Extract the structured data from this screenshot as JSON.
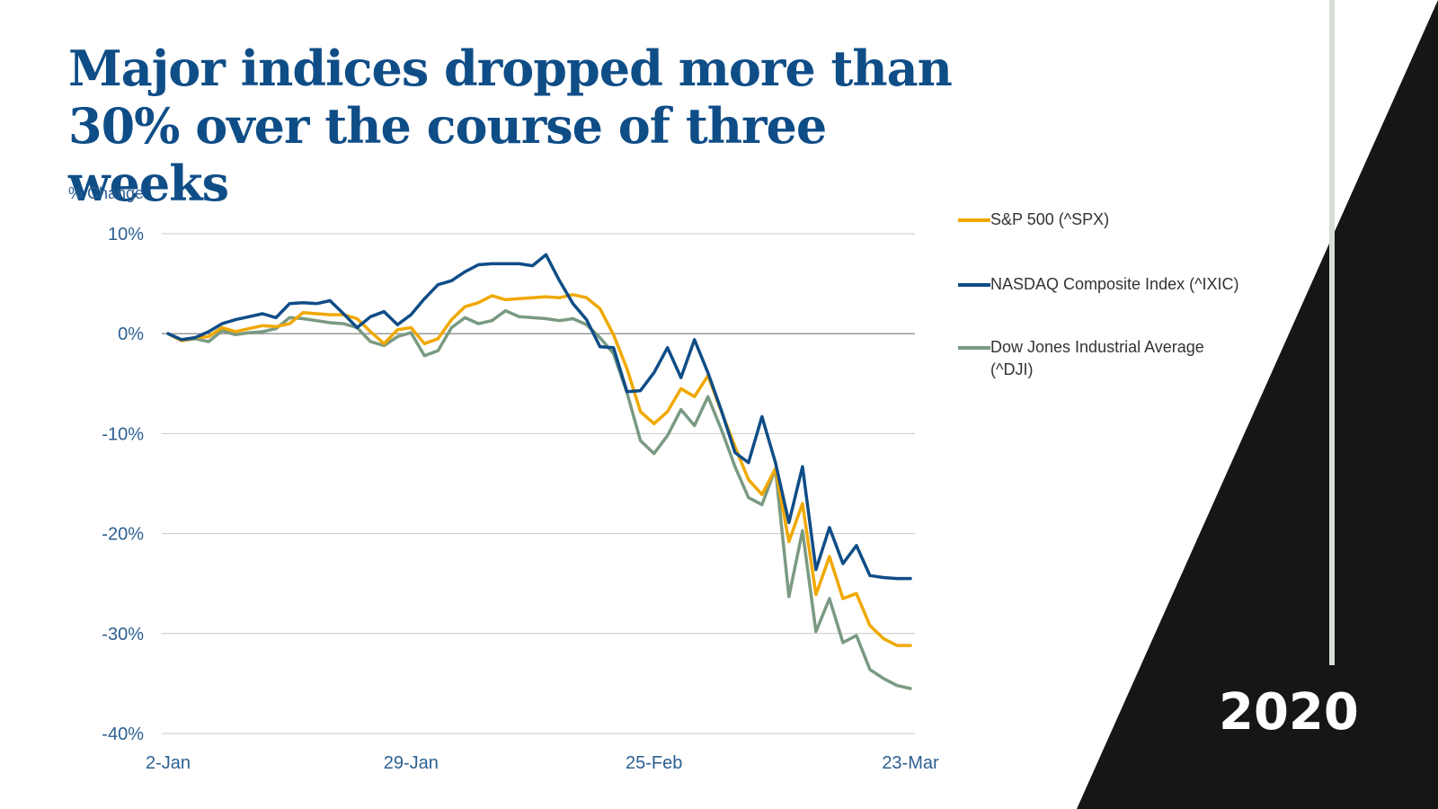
{
  "title_line1": "Major indices dropped more than",
  "title_line2": "30% over the course of three weeks",
  "year_label": "2020",
  "colors": {
    "title": "#0f4d87",
    "axis_text": "#2c5f91",
    "grid": "#c8c8c8",
    "zero_line": "#9a9a9a",
    "decor_dark": "#161616",
    "decor_bar": "#d8ddd8"
  },
  "chart_data": {
    "type": "line",
    "title": "Major indices dropped more than 30% over the course of three weeks",
    "xlabel": "",
    "ylabel": "% Change",
    "ylim": [
      -40,
      10
    ],
    "yticks": [
      10,
      0,
      -10,
      -20,
      -30,
      -40
    ],
    "ytick_labels": [
      "10%",
      "0%",
      "-10%",
      "-20%",
      "-30%",
      "-40%"
    ],
    "xticks": [
      "2-Jan",
      "29-Jan",
      "25-Feb",
      "23-Mar"
    ],
    "grid": true,
    "legend_position": "right",
    "x": [
      "2-Jan",
      "3-Jan",
      "6-Jan",
      "7-Jan",
      "8-Jan",
      "9-Jan",
      "10-Jan",
      "13-Jan",
      "14-Jan",
      "15-Jan",
      "16-Jan",
      "17-Jan",
      "21-Jan",
      "22-Jan",
      "23-Jan",
      "24-Jan",
      "27-Jan",
      "28-Jan",
      "29-Jan",
      "30-Jan",
      "31-Jan",
      "3-Feb",
      "4-Feb",
      "5-Feb",
      "6-Feb",
      "7-Feb",
      "10-Feb",
      "11-Feb",
      "12-Feb",
      "13-Feb",
      "14-Feb",
      "18-Feb",
      "19-Feb",
      "20-Feb",
      "21-Feb",
      "24-Feb",
      "25-Feb",
      "26-Feb",
      "27-Feb",
      "28-Feb",
      "2-Mar",
      "3-Mar",
      "4-Mar",
      "5-Mar",
      "6-Mar",
      "9-Mar",
      "10-Mar",
      "11-Mar",
      "12-Mar",
      "13-Mar",
      "16-Mar",
      "17-Mar",
      "18-Mar",
      "19-Mar",
      "20-Mar",
      "23-Mar"
    ],
    "series": [
      {
        "name": "S&P 500 (^SPX)",
        "color": "#f0a800",
        "values": [
          0,
          -0.7,
          -0.4,
          -0.3,
          0.6,
          0.2,
          0.5,
          0.8,
          0.7,
          1.0,
          2.1,
          2.0,
          1.9,
          1.9,
          1.5,
          0.2,
          -1.0,
          0.4,
          0.6,
          -1.0,
          -0.5,
          1.4,
          2.7,
          3.1,
          3.8,
          3.4,
          3.5,
          3.6,
          3.7,
          3.6,
          3.9,
          3.6,
          2.5,
          -0.1,
          -3.5,
          -7.8,
          -9.0,
          -7.8,
          -5.5,
          -6.3,
          -4.2,
          -7.8,
          -11.3,
          -14.6,
          -16.1,
          -13.5,
          -20.8,
          -17.0,
          -26.1,
          -22.3,
          -26.5,
          -26.0,
          -29.2,
          -30.5,
          -31.2,
          -31.2
        ]
      },
      {
        "name": "NASDAQ Composite Index (^IXIC)",
        "color": "#0f4d87",
        "values": [
          0,
          -0.6,
          -0.4,
          0.2,
          1.0,
          1.4,
          1.7,
          2.0,
          1.6,
          3.0,
          3.1,
          3.0,
          3.3,
          2.0,
          0.6,
          1.7,
          2.2,
          0.9,
          1.9,
          3.5,
          4.9,
          5.3,
          6.2,
          6.9,
          7.0,
          7.0,
          7.0,
          6.8,
          7.9,
          5.3,
          3.0,
          1.4,
          -1.3,
          -1.4,
          -5.8,
          -5.7,
          -3.9,
          -1.4,
          -4.4,
          -0.6,
          -3.9,
          -7.7,
          -11.9,
          -12.9,
          -8.3,
          -12.9,
          -18.9,
          -13.3,
          -23.6,
          -19.4,
          -23.0,
          -21.2,
          -24.2,
          -24.4,
          -24.5,
          -24.5
        ]
      },
      {
        "name": "Dow Jones Industrial Average (^DJI)",
        "color": "#7a9a82",
        "values": [
          0,
          -0.7,
          -0.5,
          -0.8,
          0.3,
          -0.1,
          0.1,
          0.2,
          0.5,
          1.6,
          1.5,
          1.3,
          1.1,
          1.0,
          0.6,
          -0.8,
          -1.2,
          -0.3,
          0.1,
          -2.2,
          -1.7,
          0.6,
          1.6,
          1.0,
          1.3,
          2.3,
          1.7,
          1.6,
          1.5,
          1.3,
          1.5,
          0.9,
          -0.4,
          -2.0,
          -5.9,
          -10.7,
          -12.0,
          -10.2,
          -7.6,
          -9.2,
          -6.3,
          -9.6,
          -13.3,
          -16.4,
          -17.1,
          -13.5,
          -26.3,
          -19.7,
          -29.8,
          -26.5,
          -30.9,
          -30.2,
          -33.6,
          -34.5,
          -35.2,
          -35.5
        ]
      }
    ]
  },
  "legend": [
    {
      "label": "S&P 500 (^SPX)",
      "color": "#f0a800"
    },
    {
      "label": "NASDAQ Composite Index (^IXIC)",
      "color": "#0f4d87"
    },
    {
      "label": "Dow Jones Industrial Average (^DJI)",
      "color": "#7a9a82"
    }
  ]
}
